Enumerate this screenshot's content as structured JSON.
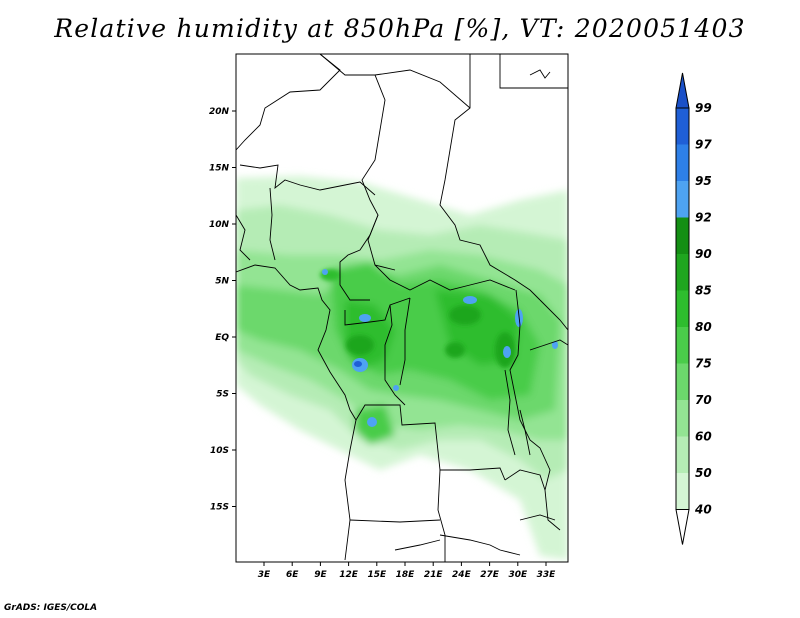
{
  "title": "Relative humidity at 850hPa [%], VT: 2020051403",
  "footer": "GrADS: IGES/COLA",
  "y_axis": {
    "tick_labels": [
      "20N",
      "15N",
      "10N",
      "5N",
      "EQ",
      "5S",
      "10S",
      "15S"
    ],
    "tick_values": [
      20,
      15,
      10,
      5,
      0,
      -5,
      -10,
      -15
    ]
  },
  "x_axis": {
    "tick_labels": [
      "3E",
      "6E",
      "9E",
      "12E",
      "15E",
      "18E",
      "21E",
      "24E",
      "27E",
      "30E",
      "33E"
    ],
    "tick_values": [
      3,
      6,
      9,
      12,
      15,
      18,
      21,
      24,
      27,
      30,
      33
    ]
  },
  "colorbar": {
    "labels": [
      "99",
      "97",
      "95",
      "92",
      "90",
      "85",
      "80",
      "75",
      "70",
      "60",
      "50",
      "40"
    ],
    "colors": [
      "#1f5fd6",
      "#2e80e8",
      "#4ea3f2",
      "#148f14",
      "#1fa61f",
      "#2ebd2e",
      "#4acc4a",
      "#6cd86c",
      "#93e493",
      "#b5ecb5",
      "#d4f5d4",
      "#eefbee"
    ],
    "top_triangle_color": "#1a50c8",
    "bottom_triangle_color": "#ffffff"
  }
}
